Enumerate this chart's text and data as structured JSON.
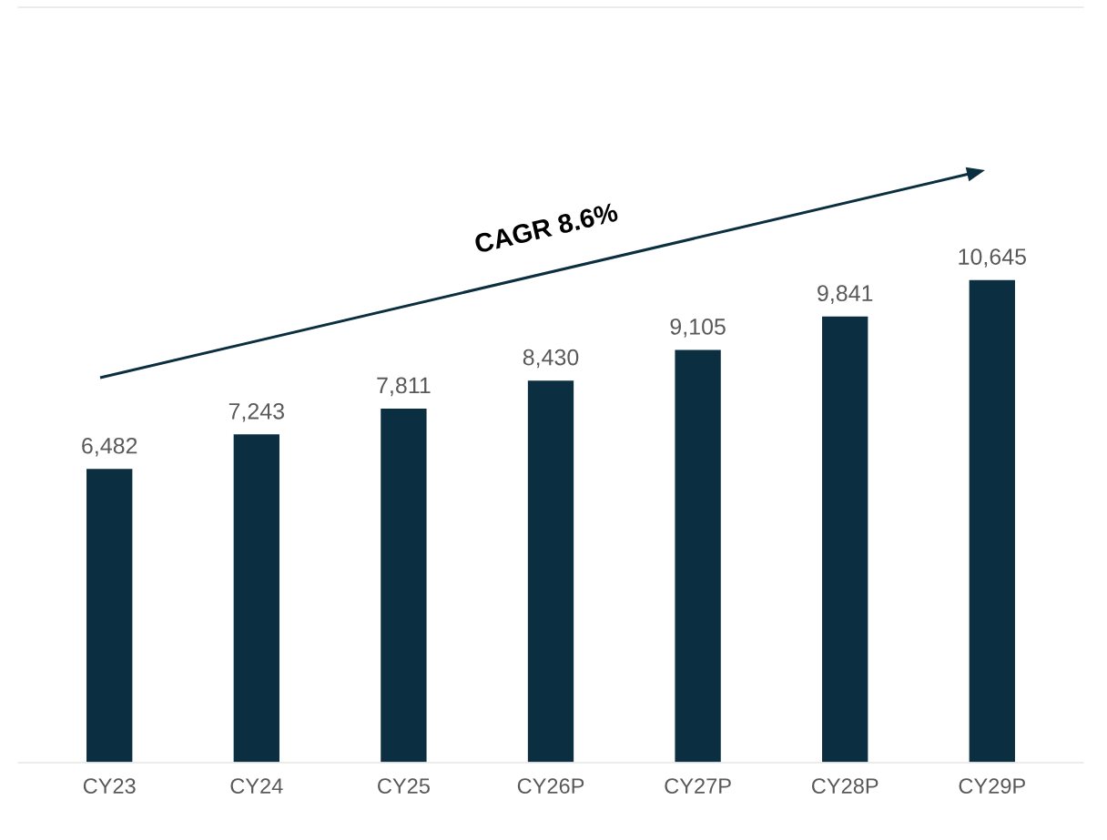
{
  "chart_data": {
    "type": "bar",
    "categories": [
      "CY23",
      "CY24",
      "CY25",
      "CY26P",
      "CY27P",
      "CY28P",
      "CY29P"
    ],
    "values": [
      6482,
      7243,
      7811,
      8430,
      9105,
      9841,
      10645
    ],
    "value_labels": [
      "6,482",
      "7,243",
      "7,811",
      "8,430",
      "9,105",
      "9,841",
      "10,645"
    ],
    "color": "#0b2f40",
    "annotations": [
      "CAGR 8.6%"
    ],
    "grid": false,
    "legend": false
  }
}
